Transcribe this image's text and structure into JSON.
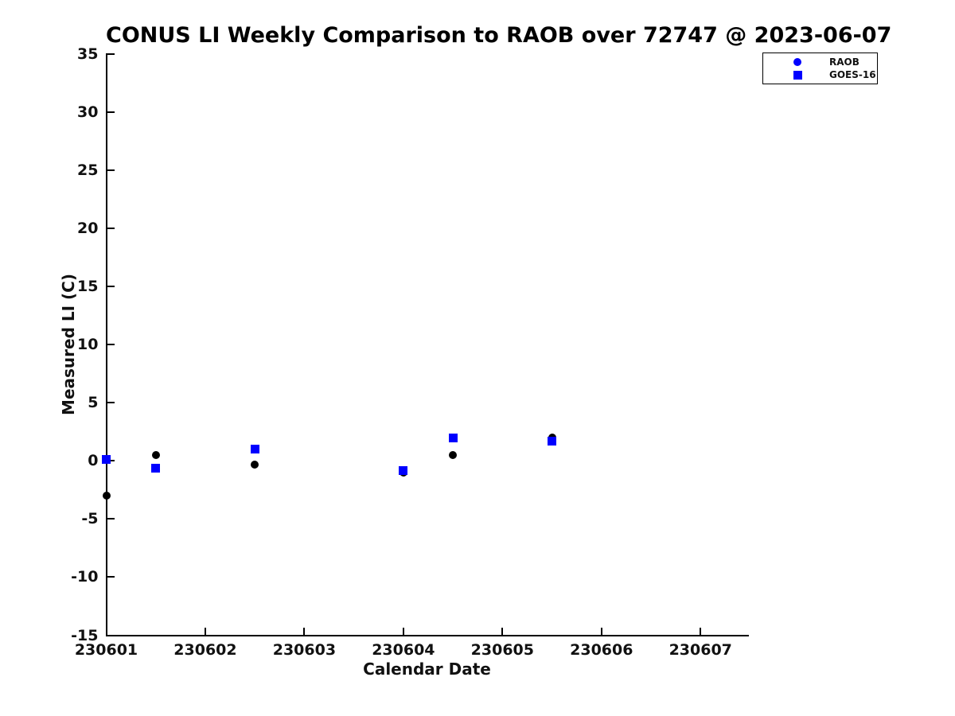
{
  "chart_data": {
    "type": "scatter",
    "title": "CONUS LI Weekly Comparison to RAOB over 72747 @ 2023-06-07",
    "xlabel": "Calendar Date",
    "ylabel": "Measured LI (C)",
    "xlim": [
      230601,
      230607.48
    ],
    "ylim": [
      -15,
      35
    ],
    "xticks": [
      230601,
      230602,
      230603,
      230604,
      230605,
      230606,
      230607
    ],
    "yticks": [
      35,
      30,
      25,
      20,
      15,
      10,
      5,
      0,
      -5,
      -10,
      -15
    ],
    "grid": false,
    "background_color": "#ffffff",
    "axis_color": "#000000",
    "legend_position": "top-right",
    "legend": {
      "entries": [
        {
          "label": "RAOB",
          "marker": "circle",
          "color": "#0000ff"
        },
        {
          "label": "GOES-16",
          "marker": "square",
          "color": "#0000ff"
        }
      ]
    },
    "series": [
      {
        "name": "RAOB",
        "marker": "circle",
        "color": "#000000",
        "points": [
          {
            "x": 230601.0,
            "y": -3.0
          },
          {
            "x": 230601.5,
            "y": 0.5
          },
          {
            "x": 230602.5,
            "y": -0.3
          },
          {
            "x": 230604.0,
            "y": -1.0
          },
          {
            "x": 230604.5,
            "y": 0.5
          },
          {
            "x": 230605.5,
            "y": 2.0
          }
        ]
      },
      {
        "name": "GOES-16",
        "marker": "square",
        "color": "#0000ff",
        "points": [
          {
            "x": 230601.0,
            "y": 0.1
          },
          {
            "x": 230601.5,
            "y": -0.6
          },
          {
            "x": 230602.5,
            "y": 1.0
          },
          {
            "x": 230604.0,
            "y": -0.8
          },
          {
            "x": 230604.5,
            "y": 2.0
          },
          {
            "x": 230605.5,
            "y": 1.7
          }
        ]
      }
    ]
  }
}
